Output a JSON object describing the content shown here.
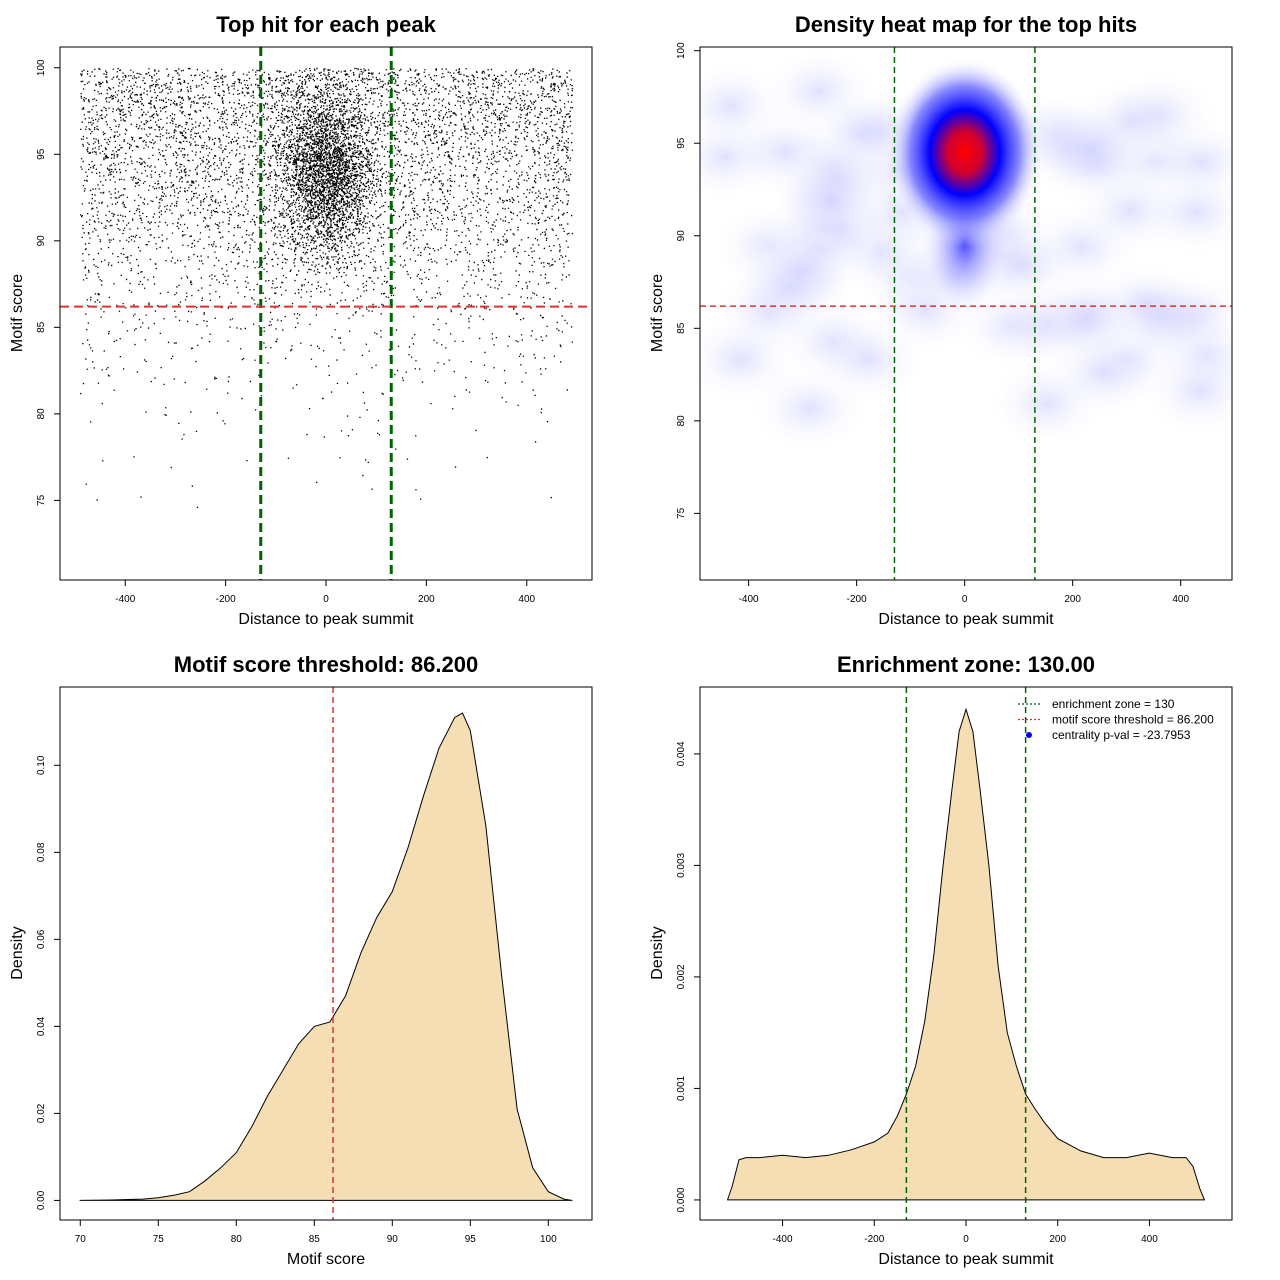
{
  "colors": {
    "point": "#000000",
    "zone_line": "#006400",
    "threshold_line": "#dd3333",
    "density_fill": "#f5deb3",
    "heat_low": "#ffffff",
    "heat_mid": "#0000ff",
    "heat_high": "#ff0000",
    "centrality_point": "#0000ff"
  },
  "chart_data": [
    {
      "type": "scatter",
      "title": "Top hit for each peak",
      "xlabel": "Distance to peak summit",
      "ylabel": "Motif score",
      "xlim": [
        -530,
        530
      ],
      "ylim": [
        70.4,
        101.2
      ],
      "xticks": [
        -400,
        -200,
        0,
        200,
        400
      ],
      "yticks": [
        75,
        80,
        85,
        90,
        95,
        100
      ],
      "vlines": [
        -130,
        130
      ],
      "hline": 86.2,
      "points_note_cluster_center": [
        0,
        94
      ],
      "grid": false
    },
    {
      "type": "heatmap",
      "title": "Density heat map for the top hits",
      "xlabel": "Distance to peak summit",
      "ylabel": "Motif score",
      "xlim": [
        -490,
        495
      ],
      "ylim": [
        71.4,
        100.2
      ],
      "xticks": [
        -400,
        -200,
        0,
        200,
        400
      ],
      "yticks": [
        75,
        80,
        85,
        90,
        95,
        100
      ],
      "vlines": [
        -130,
        130
      ],
      "hline": 86.2,
      "peak_center": [
        0,
        94.5
      ],
      "grid": false
    },
    {
      "type": "area",
      "title": "Motif score threshold: 86.200",
      "xlabel": "Motif score",
      "ylabel": "Density",
      "xlim": [
        68.7,
        102.8
      ],
      "ylim": [
        -0.0045,
        0.118
      ],
      "xticks": [
        70,
        75,
        80,
        85,
        90,
        95,
        100
      ],
      "yticks": [
        0.0,
        0.02,
        0.04,
        0.06,
        0.08,
        0.1
      ],
      "ytick_labels": [
        "0.00",
        "0.02",
        "0.04",
        "0.06",
        "0.08",
        "0.10"
      ],
      "vline": 86.2,
      "x": [
        70,
        72,
        74,
        75,
        76,
        77,
        78,
        79,
        80,
        81,
        82,
        83,
        84,
        85,
        86,
        87,
        88,
        89,
        90,
        91,
        92,
        93,
        94,
        94.5,
        95,
        96,
        97,
        98,
        99,
        100,
        101,
        101.5
      ],
      "y": [
        0.0,
        0.0001,
        0.0003,
        0.0006,
        0.0012,
        0.002,
        0.0045,
        0.0075,
        0.011,
        0.017,
        0.024,
        0.03,
        0.036,
        0.04,
        0.041,
        0.047,
        0.057,
        0.065,
        0.071,
        0.081,
        0.093,
        0.104,
        0.111,
        0.112,
        0.108,
        0.086,
        0.052,
        0.021,
        0.0075,
        0.002,
        0.0003,
        0.0
      ]
    },
    {
      "type": "area",
      "title": "Enrichment zone: 130.00",
      "xlabel": "Distance to peak summit",
      "ylabel": "Density",
      "xlim": [
        -580,
        580
      ],
      "ylim": [
        -0.00018,
        0.0046
      ],
      "xticks": [
        -400,
        -200,
        0,
        200,
        400
      ],
      "yticks": [
        0.0,
        0.001,
        0.002,
        0.003,
        0.004
      ],
      "ytick_labels": [
        "0.000",
        "0.001",
        "0.002",
        "0.003",
        "0.004"
      ],
      "vlines": [
        -130,
        130
      ],
      "x": [
        -520,
        -510,
        -495,
        -480,
        -450,
        -400,
        -350,
        -300,
        -250,
        -200,
        -170,
        -150,
        -130,
        -110,
        -90,
        -70,
        -50,
        -30,
        -15,
        0,
        15,
        30,
        50,
        70,
        90,
        110,
        130,
        150,
        170,
        200,
        250,
        300,
        350,
        400,
        450,
        480,
        495,
        510,
        520
      ],
      "y": [
        0.0,
        0.00012,
        0.00036,
        0.00038,
        0.00038,
        0.0004,
        0.00038,
        0.0004,
        0.00045,
        0.00052,
        0.0006,
        0.00075,
        0.00095,
        0.0012,
        0.0016,
        0.0022,
        0.003,
        0.0037,
        0.0042,
        0.0044,
        0.0042,
        0.0037,
        0.003,
        0.0021,
        0.0015,
        0.0012,
        0.00095,
        0.00082,
        0.0007,
        0.00055,
        0.00044,
        0.00038,
        0.00038,
        0.00042,
        0.00038,
        0.00038,
        0.0003,
        0.0001,
        0.0
      ],
      "legend": {
        "position": "top-right",
        "entries": [
          {
            "label": "enrichment zone = 130",
            "style": "dotted-green-line"
          },
          {
            "label": "motif score threshold = 86.200",
            "style": "dotted-red-line"
          },
          {
            "label": "centrality p-val = -23.7953",
            "style": "blue-point"
          }
        ]
      }
    }
  ]
}
